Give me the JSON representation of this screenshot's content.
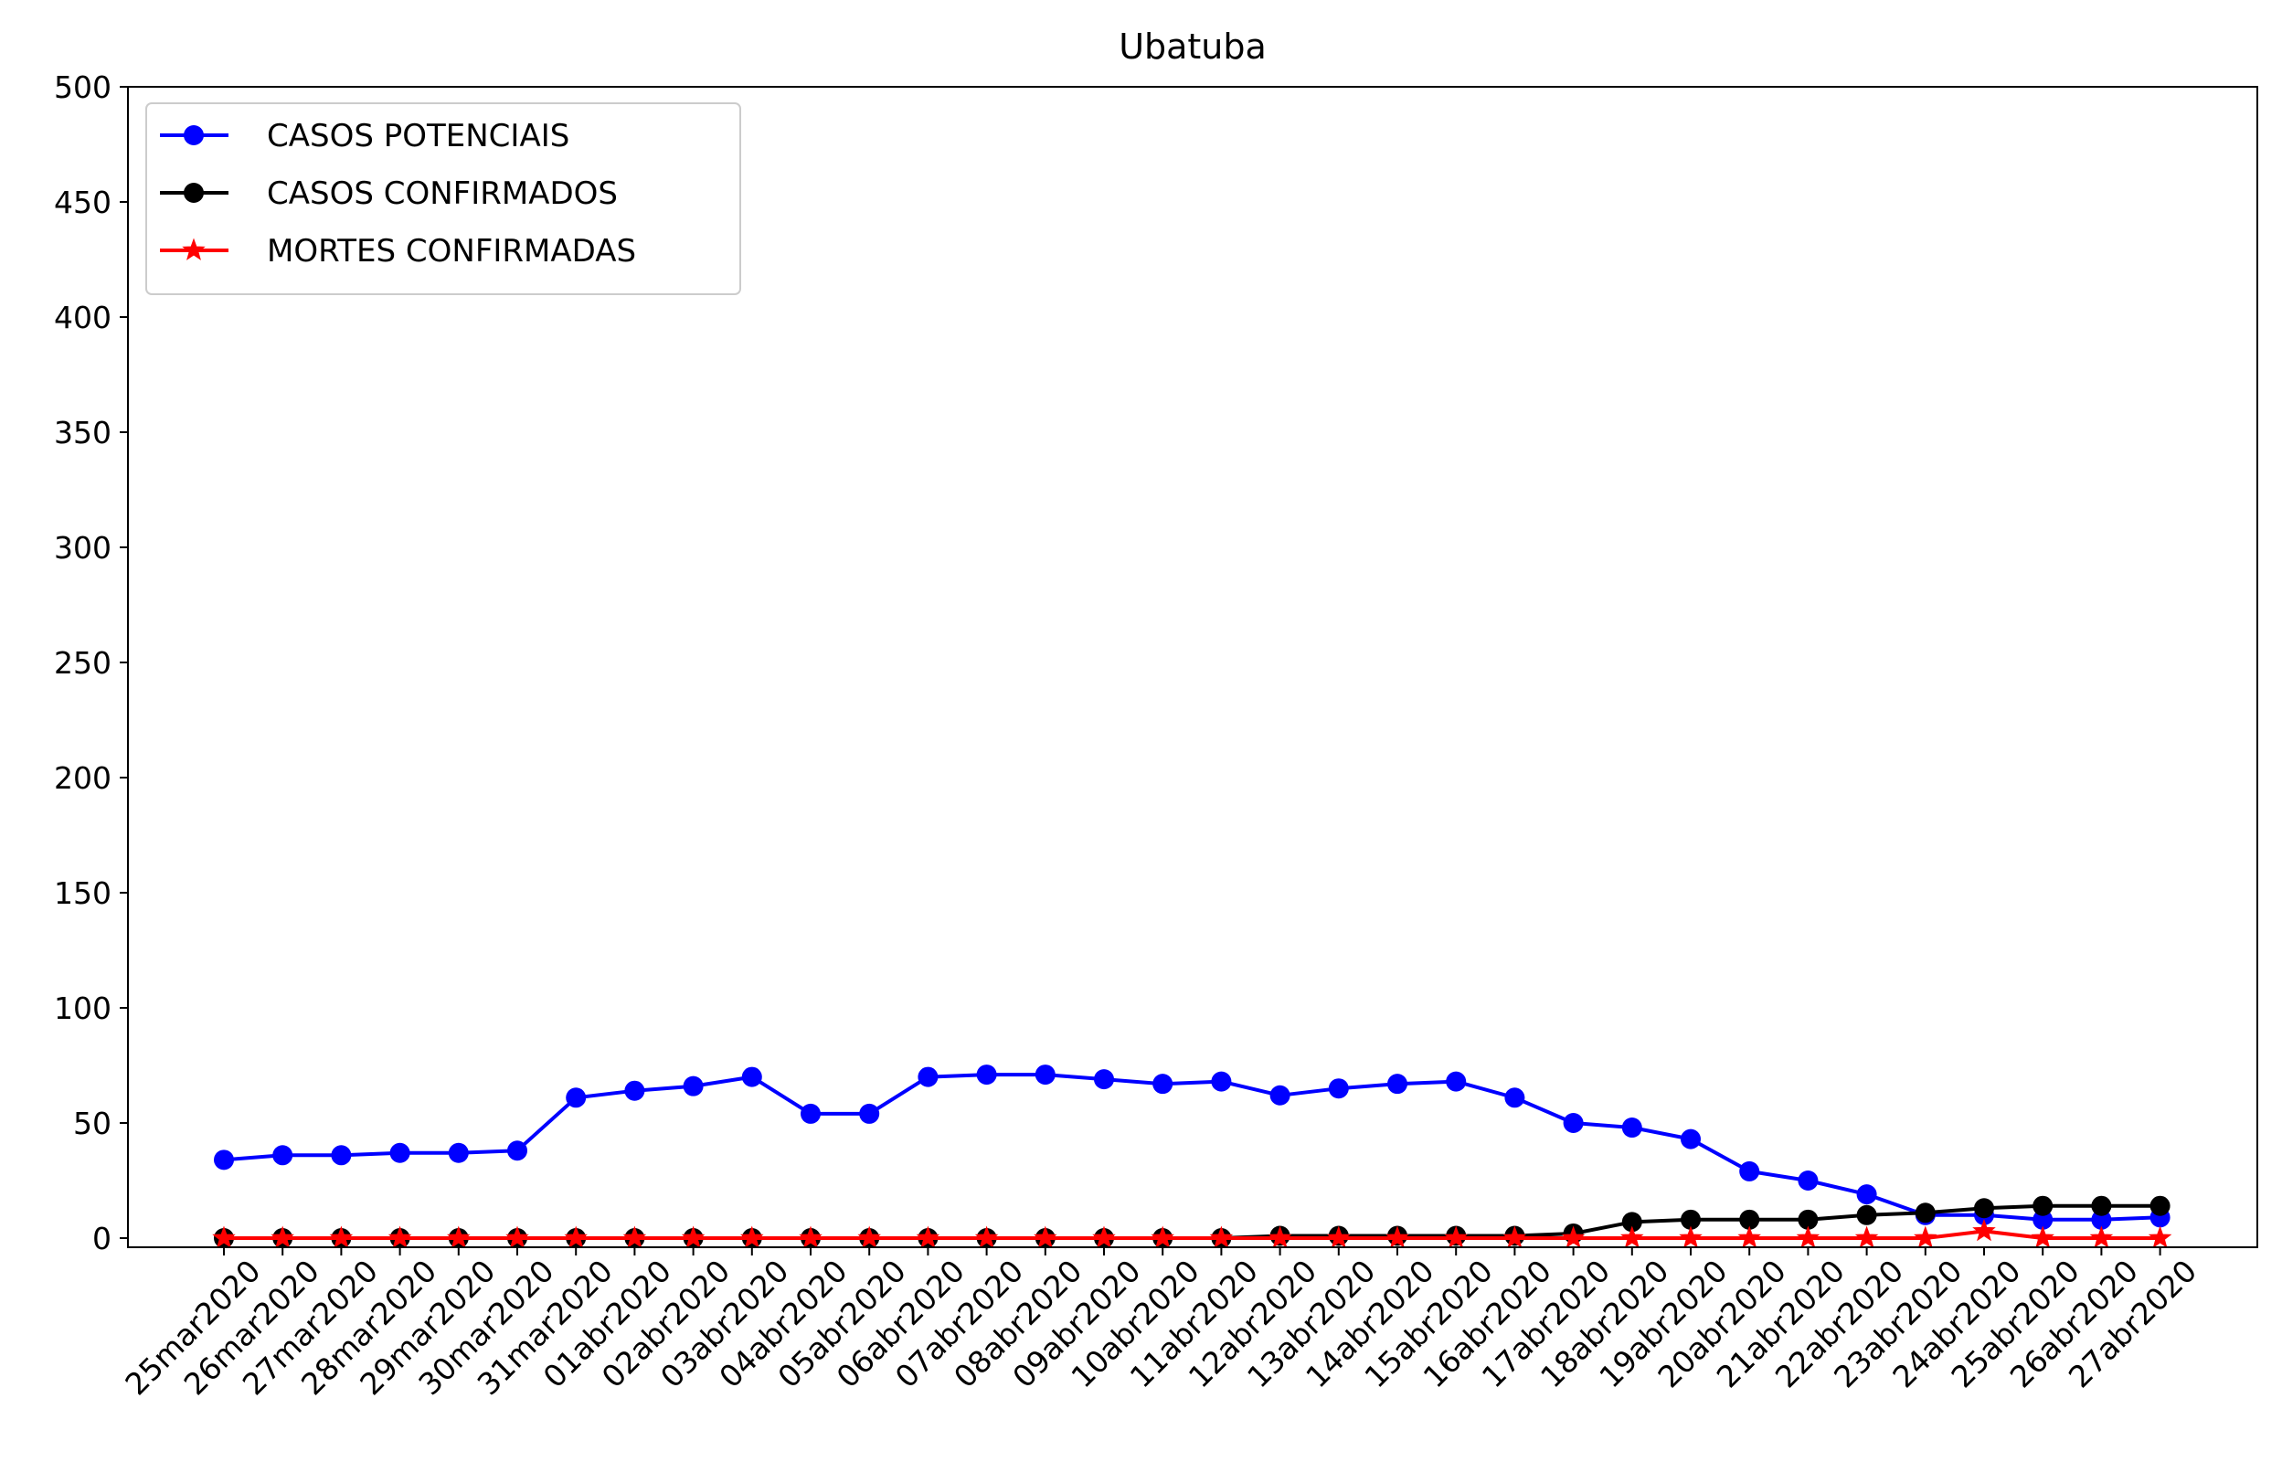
{
  "chart_data": {
    "type": "line",
    "title": "Ubatuba",
    "xlabel": "",
    "ylabel": "",
    "ylim": [
      0,
      500
    ],
    "yticks": [
      0,
      50,
      100,
      150,
      200,
      250,
      300,
      350,
      400,
      450,
      500
    ],
    "grid": false,
    "legend_position": "top-left",
    "categories": [
      "25mar2020",
      "26mar2020",
      "27mar2020",
      "28mar2020",
      "29mar2020",
      "30mar2020",
      "31mar2020",
      "01abr2020",
      "02abr2020",
      "03abr2020",
      "04abr2020",
      "05abr2020",
      "06abr2020",
      "07abr2020",
      "08abr2020",
      "09abr2020",
      "10abr2020",
      "11abr2020",
      "12abr2020",
      "13abr2020",
      "14abr2020",
      "15abr2020",
      "16abr2020",
      "17abr2020",
      "18abr2020",
      "19abr2020",
      "20abr2020",
      "21abr2020",
      "22abr2020",
      "23abr2020",
      "24abr2020",
      "25abr2020",
      "26abr2020",
      "27abr2020"
    ],
    "series": [
      {
        "name": "CASOS POTENCIAIS",
        "color": "#0000ff",
        "marker": "circle",
        "values": [
          34,
          36,
          36,
          37,
          37,
          38,
          61,
          64,
          66,
          70,
          54,
          54,
          70,
          71,
          71,
          69,
          67,
          68,
          62,
          65,
          67,
          68,
          61,
          50,
          48,
          43,
          29,
          25,
          19,
          10,
          10,
          8,
          8,
          9
        ]
      },
      {
        "name": "CASOS CONFIRMADOS",
        "color": "#000000",
        "marker": "circle",
        "values": [
          0,
          0,
          0,
          0,
          0,
          0,
          0,
          0,
          0,
          0,
          0,
          0,
          0,
          0,
          0,
          0,
          0,
          0,
          1,
          1,
          1,
          1,
          1,
          2,
          7,
          8,
          8,
          8,
          10,
          11,
          13,
          14,
          14,
          14
        ]
      },
      {
        "name": "MORTES CONFIRMADAS",
        "color": "#ff0000",
        "marker": "star",
        "values": [
          0,
          0,
          0,
          0,
          0,
          0,
          0,
          0,
          0,
          0,
          0,
          0,
          0,
          0,
          0,
          0,
          0,
          0,
          0,
          0,
          0,
          0,
          0,
          0,
          0,
          0,
          0,
          0,
          0,
          0,
          3,
          0,
          0,
          0
        ]
      }
    ]
  }
}
